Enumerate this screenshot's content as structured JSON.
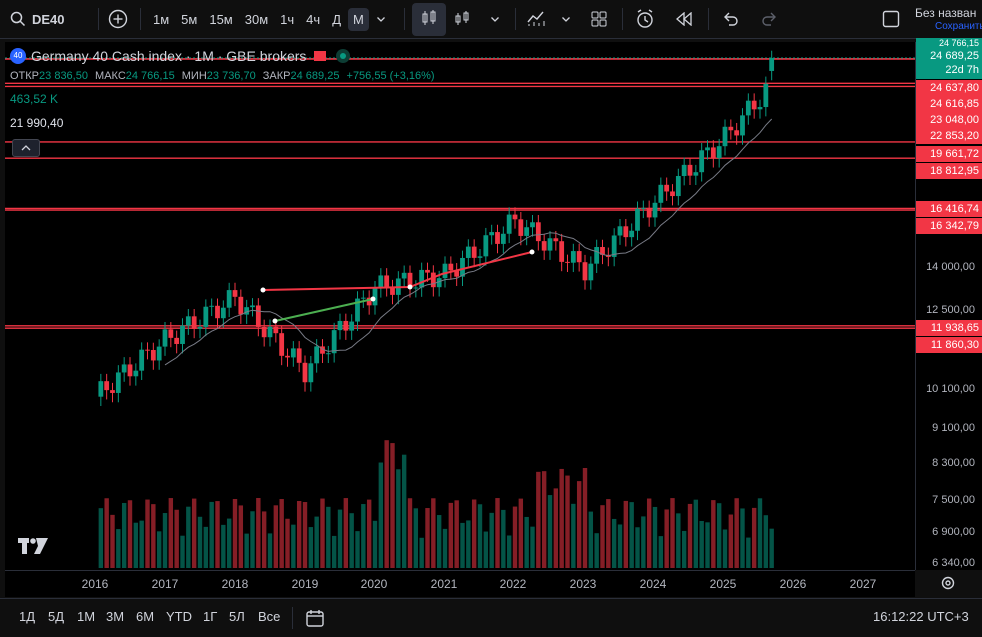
{
  "symbol": {
    "search_icon": "search-icon",
    "name": "DE40"
  },
  "toolbar": {
    "intervals": [
      "1м",
      "5м",
      "15м",
      "30м",
      "1ч",
      "4ч",
      "Д",
      "М"
    ],
    "active_interval": "М",
    "save_title": "Без назван",
    "save_sub": "Сохранить"
  },
  "legend": {
    "badge": "40",
    "title": "Germany 40 Cash index · 1M · GBE brokers",
    "open_label": "ОТКР",
    "open": "23 836,50",
    "high_label": "МАКС",
    "high": "24 766,15",
    "low_label": "МИН",
    "low": "23 736,70",
    "close_label": "ЗАКР",
    "close": "24 689,25",
    "change": "+756,55 (+3,16%)",
    "volume": "463,52 K",
    "ma": "21 990,40"
  },
  "price_scale": {
    "current_price": "24 689,25",
    "countdown": "22d 7h",
    "top_cut": "24 766,15",
    "levels": [
      "24 637,80",
      "24 616,85",
      "23 048,00",
      "22 853,20",
      "19 661,72",
      "18 812,95",
      "16 416,74",
      "16 342,79",
      "11 938,65",
      "11 860,30"
    ],
    "ticks": [
      "14 000,00",
      "12 500,00",
      "10 100,00",
      "9 100,00",
      "8 300,00",
      "7 500,00",
      "6 900,00",
      "6 340,00"
    ]
  },
  "time_scale": {
    "years": [
      "2016",
      "2017",
      "2018",
      "2019",
      "2020",
      "2021",
      "2022",
      "2023",
      "2024",
      "2025",
      "2026",
      "2027"
    ]
  },
  "bottom": {
    "ranges": [
      "1Д",
      "5Д",
      "1М",
      "3М",
      "6М",
      "YTD",
      "1Г",
      "5Л",
      "Все"
    ],
    "clock": "16:12:22 UTC+3"
  },
  "colors": {
    "up": "#089981",
    "down": "#f23645",
    "ma": "#787b86"
  },
  "chart_data": {
    "type": "candlestick",
    "title": "Germany 40 Cash index · 1M · GBE brokers",
    "years": [
      2016,
      2017,
      2018,
      2019,
      2020,
      2021,
      2022,
      2023,
      2024,
      2025
    ],
    "approx_yearly_close": [
      11480,
      12900,
      10560,
      13250,
      13720,
      15880,
      13920,
      16750,
      19900,
      24690
    ],
    "horizontal_levels": [
      24637.8,
      24616.85,
      23048.0,
      22853.2,
      19661.72,
      18812.95,
      16416.74,
      16342.79,
      11938.65,
      11860.3
    ],
    "last_candle": {
      "open": 23836.5,
      "high": 24766.15,
      "low": 23736.7,
      "close": 24689.25
    }
  }
}
